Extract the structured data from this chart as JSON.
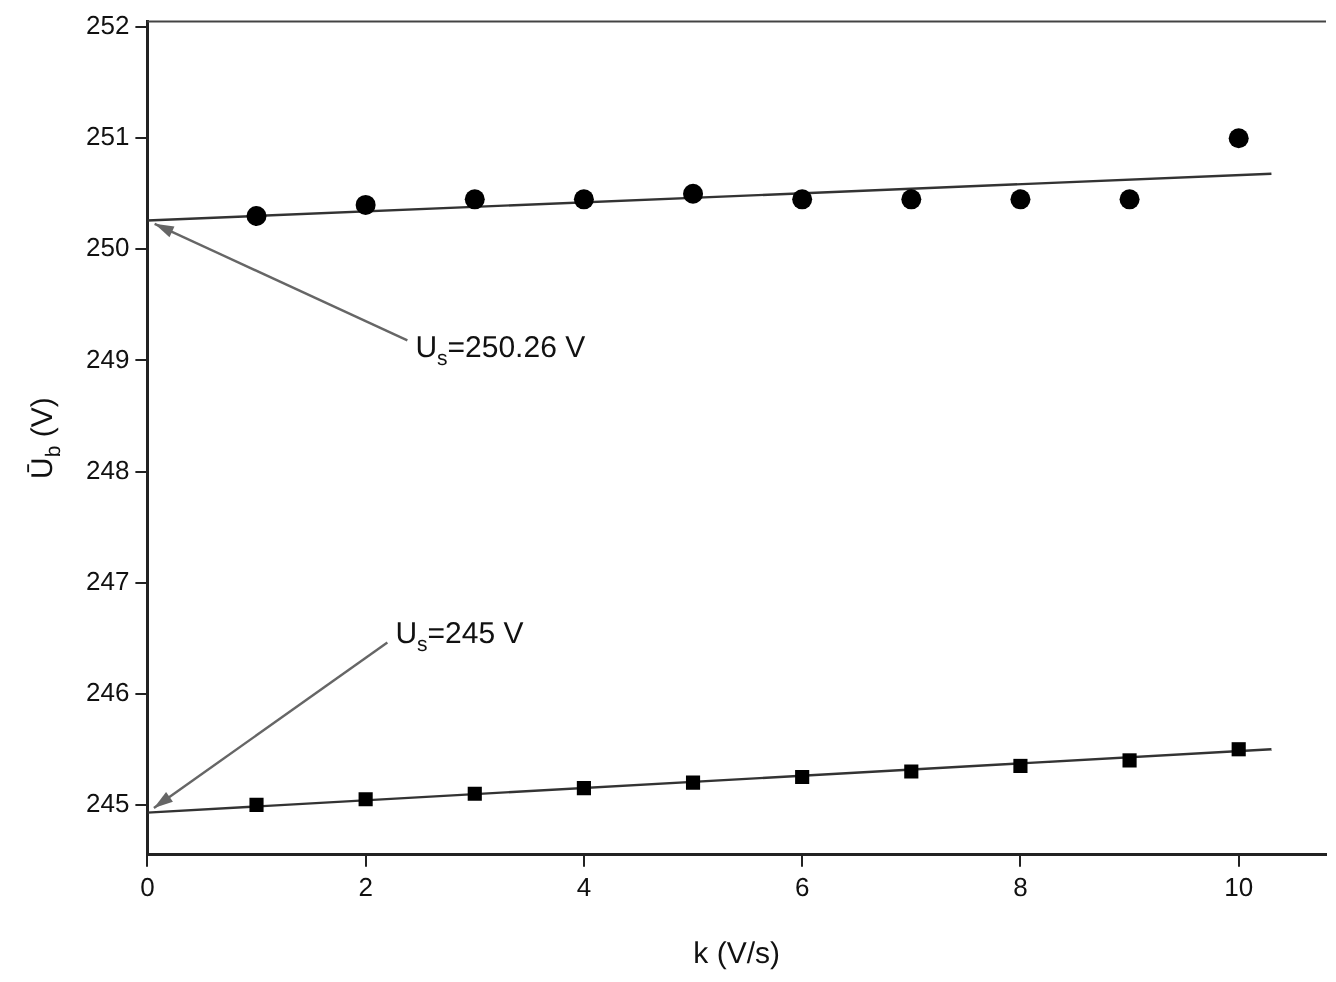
{
  "chart_data": {
    "type": "scatter",
    "xlabel": "k (V/s)",
    "ylabel": "Ū$_{b}$ (V)",
    "xlim": [
      0,
      10.8
    ],
    "xticks": [
      0,
      2,
      4,
      6,
      8,
      10
    ],
    "ylim": [
      244.55,
      252.05
    ],
    "yticks": [
      245,
      246,
      247,
      248,
      249,
      250,
      251,
      252
    ],
    "grid": false,
    "legend": false,
    "series": [
      {
        "type": "scatter",
        "marker": "square",
        "color": "#000000",
        "x": [
          1,
          2,
          3,
          4,
          5,
          6,
          7,
          8,
          9,
          10
        ],
        "values": [
          245.0,
          245.05,
          245.1,
          245.15,
          245.2,
          245.25,
          245.3,
          245.35,
          245.4,
          245.5
        ]
      },
      {
        "type": "scatter",
        "marker": "circle",
        "color": "#000000",
        "x": [
          1,
          2,
          3,
          4,
          5,
          6,
          7,
          8,
          9,
          10
        ],
        "values": [
          250.3,
          250.4,
          250.45,
          250.45,
          250.5,
          250.45,
          250.45,
          250.45,
          250.45,
          251.0
        ]
      },
      {
        "type": "line",
        "marker": "none",
        "line_style": "solid",
        "color": "#333333",
        "x": [
          0,
          10.3
        ],
        "values": [
          244.93,
          245.5
        ]
      },
      {
        "type": "line",
        "marker": "none",
        "line_style": "solid",
        "color": "#333333",
        "x": [
          0,
          10.3
        ],
        "values": [
          250.26,
          250.68
        ]
      }
    ],
    "annotations": [
      {
        "text": "U$_{s}$=250.26 V",
        "x": 0,
        "y": 250.26
      },
      {
        "text": "U$_{s}$=245 V",
        "x": 0,
        "y": 244.93
      }
    ]
  }
}
